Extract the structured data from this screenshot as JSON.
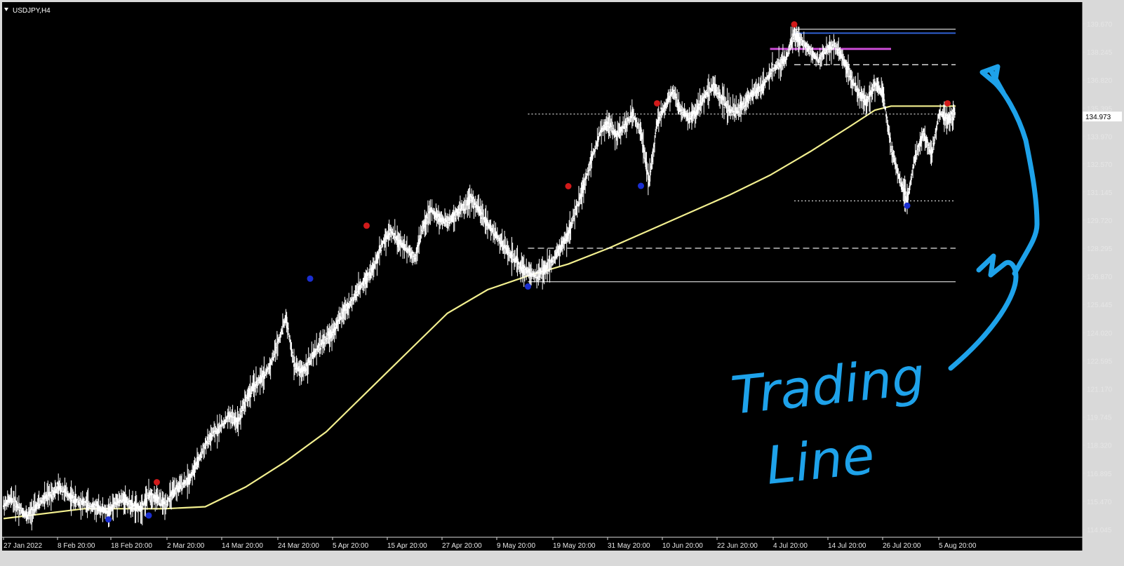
{
  "window": {
    "symbol": "USDJPY,H4",
    "current_price": "134.973"
  },
  "colors": {
    "background": "#000000",
    "candles": "#ffffff",
    "moving_average": "#f2ef8f",
    "swing_high": "#d11a1a",
    "swing_low": "#1a2ed1",
    "level_lines": "#ffffff",
    "magenta_level": "#c74ad2",
    "blue_level": "#2f5fd0",
    "annotation": "#1ea2ea"
  },
  "annotation": {
    "line1": "Trading",
    "line2": "Line"
  },
  "chart_data": {
    "type": "candlestick",
    "title": "USDJPY,H4",
    "y_ticks": [
      "139.670",
      "138.245",
      "136.820",
      "135.395",
      "133.970",
      "132.570",
      "131.145",
      "129.720",
      "128.295",
      "126.870",
      "125.445",
      "124.020",
      "122.595",
      "121.170",
      "119.745",
      "118.320",
      "116.895",
      "115.470",
      "114.045"
    ],
    "ylim": [
      114.045,
      139.67
    ],
    "x_ticks": [
      "27 Jan 2022",
      "8 Feb 20:00",
      "18 Feb 20:00",
      "2 Mar 20:00",
      "14 Mar 20:00",
      "24 Mar 20:00",
      "5 Apr 20:00",
      "15 Apr 20:00",
      "27 Apr 20:00",
      "9 May 20:00",
      "19 May 20:00",
      "31 May 20:00",
      "10 Jun 20:00",
      "22 Jun 20:00",
      "4 Jul 20:00",
      "14 Jul 20:00",
      "26 Jul 20:00",
      "5 Aug 20:00"
    ],
    "price_path": [
      [
        0,
        115.3
      ],
      [
        1,
        115.6
      ],
      [
        2,
        115.1
      ],
      [
        3,
        114.7
      ],
      [
        4,
        115.2
      ],
      [
        5,
        115.6
      ],
      [
        6,
        115.9
      ],
      [
        7,
        116.2
      ],
      [
        8,
        115.8
      ],
      [
        9,
        115.5
      ],
      [
        10,
        115.4
      ],
      [
        11,
        115.2
      ],
      [
        12,
        115.1
      ],
      [
        13,
        114.9
      ],
      [
        14,
        115.5
      ],
      [
        15,
        115.6
      ],
      [
        16,
        115.2
      ],
      [
        17,
        115.1
      ],
      [
        18,
        115.8
      ],
      [
        19,
        115.6
      ],
      [
        20,
        115.3
      ],
      [
        21,
        115.9
      ],
      [
        22,
        116.3
      ],
      [
        23,
        116.6
      ],
      [
        24,
        117.4
      ],
      [
        25,
        118.3
      ],
      [
        26,
        118.9
      ],
      [
        27,
        119.3
      ],
      [
        28,
        119.8
      ],
      [
        29,
        119.5
      ],
      [
        30,
        120.6
      ],
      [
        31,
        121.3
      ],
      [
        32,
        121.7
      ],
      [
        33,
        122.3
      ],
      [
        34,
        123.5
      ],
      [
        35,
        124.8
      ],
      [
        36,
        122.4
      ],
      [
        37,
        122.0
      ],
      [
        38,
        122.6
      ],
      [
        39,
        123.3
      ],
      [
        40,
        123.7
      ],
      [
        41,
        124.2
      ],
      [
        42,
        125.0
      ],
      [
        43,
        125.5
      ],
      [
        44,
        126.2
      ],
      [
        45,
        126.8
      ],
      [
        46,
        127.4
      ],
      [
        47,
        128.6
      ],
      [
        48,
        129.2
      ],
      [
        49,
        128.6
      ],
      [
        50,
        128.3
      ],
      [
        51,
        127.8
      ],
      [
        52,
        129.4
      ],
      [
        53,
        130.2
      ],
      [
        54,
        129.8
      ],
      [
        55,
        129.6
      ],
      [
        56,
        130.0
      ],
      [
        57,
        130.4
      ],
      [
        58,
        130.8
      ],
      [
        59,
        130.2
      ],
      [
        60,
        129.5
      ],
      [
        61,
        129.0
      ],
      [
        62,
        128.4
      ],
      [
        63,
        127.9
      ],
      [
        64,
        127.4
      ],
      [
        65,
        127.1
      ],
      [
        66,
        126.9
      ],
      [
        67,
        127.2
      ],
      [
        68,
        127.6
      ],
      [
        69,
        128.3
      ],
      [
        70,
        129.0
      ],
      [
        71,
        130.3
      ],
      [
        72,
        131.6
      ],
      [
        73,
        133.0
      ],
      [
        74,
        134.2
      ],
      [
        75,
        134.6
      ],
      [
        76,
        134.0
      ],
      [
        77,
        134.5
      ],
      [
        78,
        135.1
      ],
      [
        79,
        134.2
      ],
      [
        80,
        131.6
      ],
      [
        81,
        134.7
      ],
      [
        82,
        135.5
      ],
      [
        83,
        136.3
      ],
      [
        84,
        135.2
      ],
      [
        85,
        134.9
      ],
      [
        86,
        135.3
      ],
      [
        87,
        136.1
      ],
      [
        88,
        136.5
      ],
      [
        89,
        135.9
      ],
      [
        90,
        135.3
      ],
      [
        91,
        135.2
      ],
      [
        92,
        135.8
      ],
      [
        93,
        136.2
      ],
      [
        94,
        136.4
      ],
      [
        95,
        137.2
      ],
      [
        96,
        137.6
      ],
      [
        97,
        137.9
      ],
      [
        98,
        139.2
      ],
      [
        99,
        138.7
      ],
      [
        100,
        138.3
      ],
      [
        101,
        137.8
      ],
      [
        102,
        138.4
      ],
      [
        103,
        138.6
      ],
      [
        104,
        137.9
      ],
      [
        105,
        137.0
      ],
      [
        106,
        136.1
      ],
      [
        107,
        135.7
      ],
      [
        108,
        136.6
      ],
      [
        109,
        136.2
      ],
      [
        110,
        133.4
      ],
      [
        111,
        131.9
      ],
      [
        112,
        130.7
      ],
      [
        113,
        133.0
      ],
      [
        114,
        134.1
      ],
      [
        115,
        133.0
      ],
      [
        116,
        135.2
      ],
      [
        117,
        134.8
      ],
      [
        118,
        135.2
      ]
    ],
    "moving_average": [
      [
        0,
        114.6
      ],
      [
        10,
        115.1
      ],
      [
        20,
        115.1
      ],
      [
        25,
        115.2
      ],
      [
        30,
        116.2
      ],
      [
        35,
        117.5
      ],
      [
        40,
        119.0
      ],
      [
        45,
        121.0
      ],
      [
        50,
        123.0
      ],
      [
        55,
        125.0
      ],
      [
        60,
        126.2
      ],
      [
        65,
        126.9
      ],
      [
        70,
        127.5
      ],
      [
        75,
        128.3
      ],
      [
        80,
        129.2
      ],
      [
        85,
        130.1
      ],
      [
        90,
        131.0
      ],
      [
        95,
        132.0
      ],
      [
        100,
        133.2
      ],
      [
        105,
        134.5
      ],
      [
        108,
        135.3
      ],
      [
        110,
        135.5
      ],
      [
        113,
        135.5
      ],
      [
        118,
        135.5
      ]
    ],
    "swing_highs": [
      [
        19,
        116.3
      ],
      [
        45,
        129.3
      ],
      [
        70,
        131.3
      ],
      [
        81,
        135.5
      ],
      [
        98,
        139.5
      ],
      [
        117,
        135.5
      ]
    ],
    "swing_lows": [
      [
        13,
        114.7
      ],
      [
        18,
        114.9
      ],
      [
        38,
        126.9
      ],
      [
        65,
        126.5
      ],
      [
        79,
        131.6
      ],
      [
        112,
        130.6
      ]
    ],
    "horizontal_levels": [
      {
        "price": 135.1,
        "from": 65,
        "to": 118,
        "style": "dotted"
      },
      {
        "price": 128.3,
        "from": 65,
        "to": 118,
        "style": "dashed"
      },
      {
        "price": 126.6,
        "from": 65,
        "to": 118,
        "style": "solid"
      },
      {
        "price": 137.6,
        "from": 98,
        "to": 118,
        "style": "dashed"
      },
      {
        "price": 130.7,
        "from": 98,
        "to": 118,
        "style": "dotted"
      },
      {
        "price": 138.4,
        "from": 95,
        "to": 110,
        "style": "magenta"
      },
      {
        "price": 139.2,
        "from": 98,
        "to": 118,
        "style": "blue"
      },
      {
        "price": 139.4,
        "from": 98,
        "to": 118,
        "style": "solid"
      }
    ]
  }
}
